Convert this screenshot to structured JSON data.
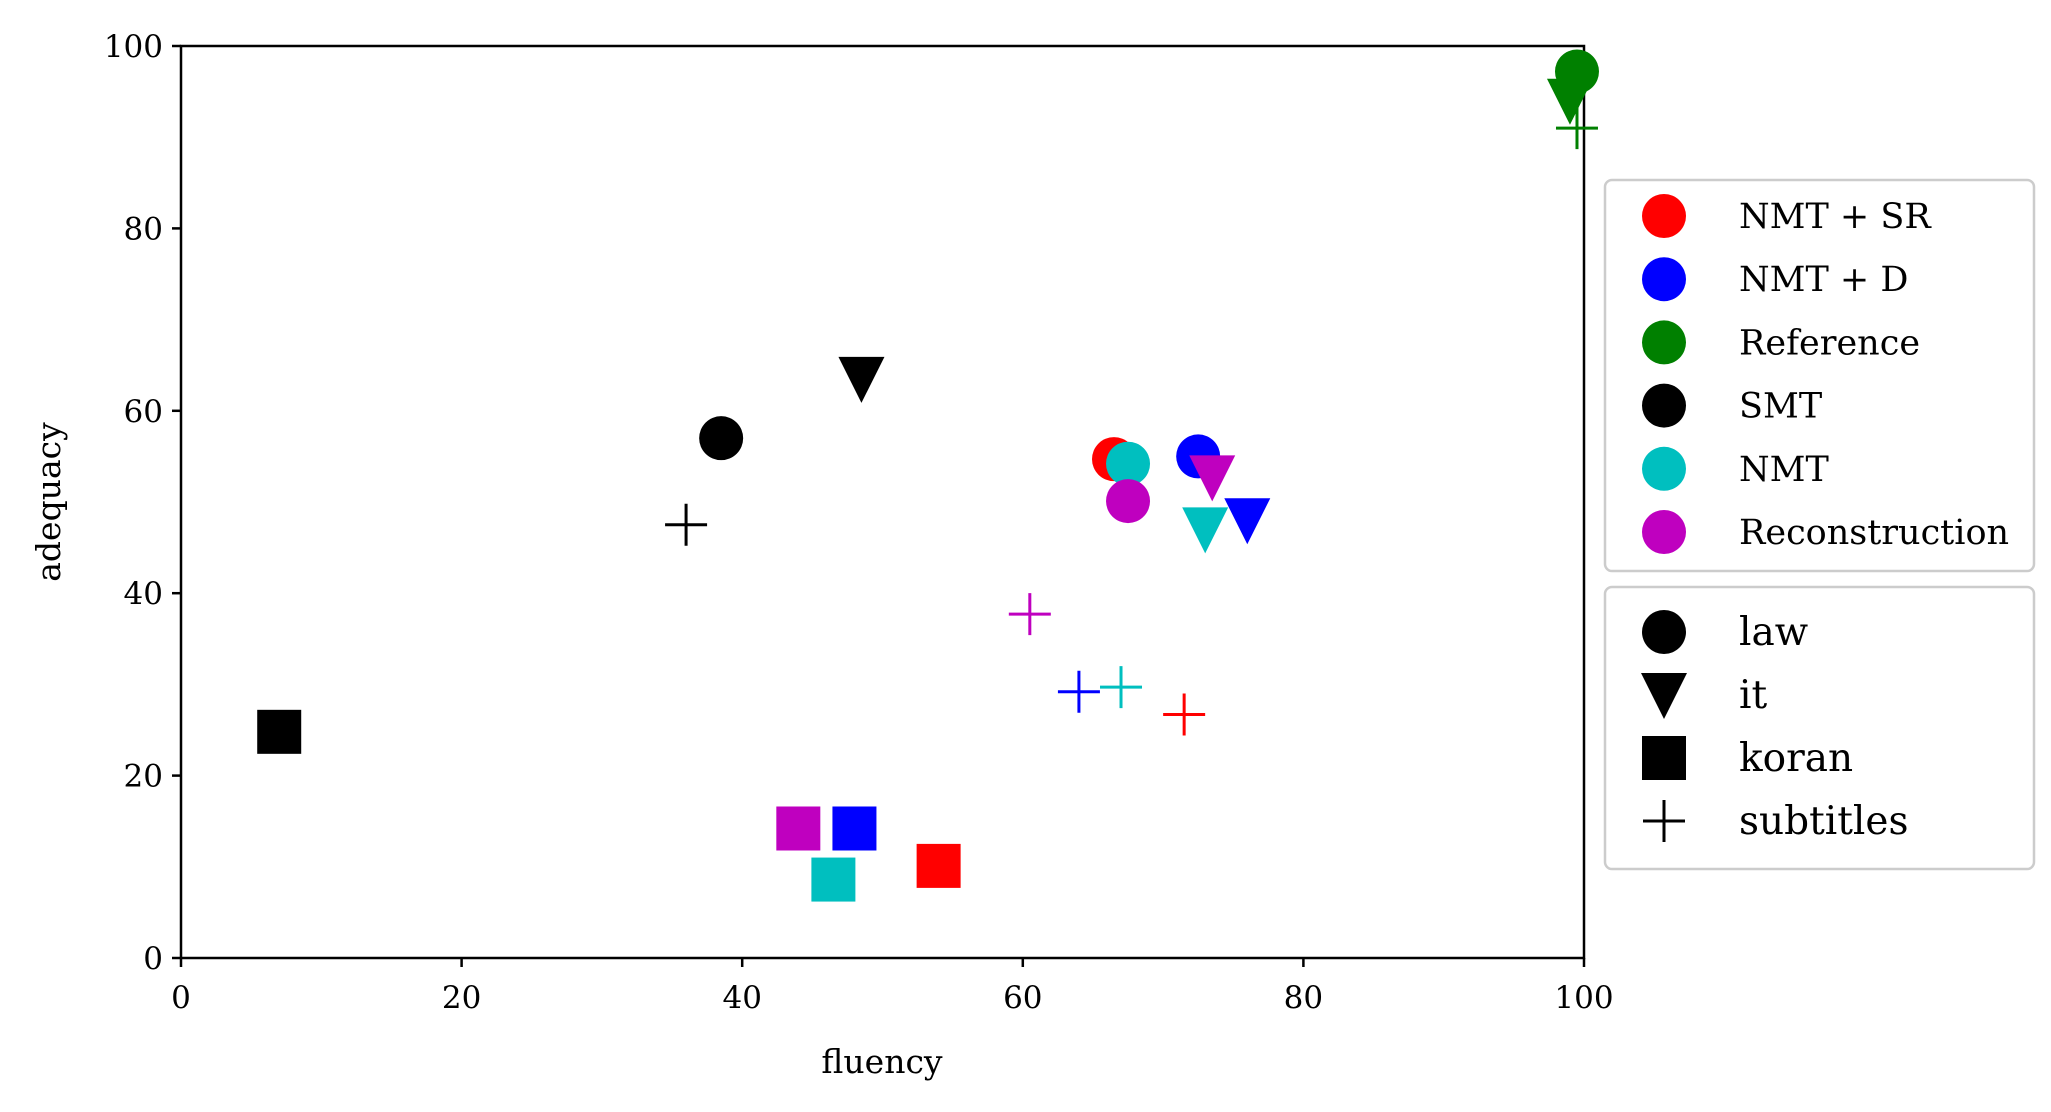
{
  "chart_data": {
    "type": "scatter",
    "xlabel": "fluency",
    "ylabel": "adequacy",
    "xlim": [
      0,
      100
    ],
    "ylim": [
      0,
      100
    ],
    "xticks": [
      0,
      20,
      40,
      60,
      80,
      100
    ],
    "yticks": [
      0,
      20,
      40,
      60,
      80,
      100
    ],
    "grid": false,
    "legend_placement": "right",
    "systems": [
      {
        "name": "NMT + SR",
        "color": "#ff0000"
      },
      {
        "name": "NMT + D",
        "color": "#0000ff"
      },
      {
        "name": "Reference",
        "color": "#008000"
      },
      {
        "name": "SMT",
        "color": "#000000"
      },
      {
        "name": "NMT",
        "color": "#00bfbf"
      },
      {
        "name": "Reconstruction",
        "color": "#bf00bf"
      }
    ],
    "domains": [
      {
        "name": "law",
        "marker": "circle"
      },
      {
        "name": "it",
        "marker": "triangle-down"
      },
      {
        "name": "koran",
        "marker": "square"
      },
      {
        "name": "subtitles",
        "marker": "plus"
      }
    ],
    "points": [
      {
        "system": "SMT",
        "domain": "law",
        "x": 38.5,
        "y": 57.0
      },
      {
        "system": "SMT",
        "domain": "it",
        "x": 48.5,
        "y": 63.5
      },
      {
        "system": "SMT",
        "domain": "koran",
        "x": 7.0,
        "y": 24.8
      },
      {
        "system": "SMT",
        "domain": "subtitles",
        "x": 36.0,
        "y": 47.5
      },
      {
        "system": "NMT + SR",
        "domain": "law",
        "x": 66.5,
        "y": 54.7
      },
      {
        "system": "NMT + SR",
        "domain": "koran",
        "x": 54.0,
        "y": 10.1
      },
      {
        "system": "NMT + SR",
        "domain": "subtitles",
        "x": 71.5,
        "y": 26.7
      },
      {
        "system": "NMT + D",
        "domain": "law",
        "x": 72.5,
        "y": 55.0
      },
      {
        "system": "NMT + D",
        "domain": "it",
        "x": 76.0,
        "y": 48.0
      },
      {
        "system": "NMT + D",
        "domain": "koran",
        "x": 48.0,
        "y": 14.2
      },
      {
        "system": "NMT + D",
        "domain": "subtitles",
        "x": 64.0,
        "y": 29.2
      },
      {
        "system": "Reference",
        "domain": "law",
        "x": 99.5,
        "y": 97.2
      },
      {
        "system": "Reference",
        "domain": "it",
        "x": 99.0,
        "y": 94.0
      },
      {
        "system": "Reference",
        "domain": "subtitles",
        "x": 99.5,
        "y": 91.0
      },
      {
        "system": "NMT",
        "domain": "law",
        "x": 67.5,
        "y": 54.2
      },
      {
        "system": "NMT",
        "domain": "it",
        "x": 73.0,
        "y": 47.0
      },
      {
        "system": "NMT",
        "domain": "koran",
        "x": 46.5,
        "y": 8.6
      },
      {
        "system": "NMT",
        "domain": "subtitles",
        "x": 67.0,
        "y": 29.7
      },
      {
        "system": "Reconstruction",
        "domain": "law",
        "x": 67.5,
        "y": 50.1
      },
      {
        "system": "Reconstruction",
        "domain": "it",
        "x": 73.5,
        "y": 52.7
      },
      {
        "system": "Reconstruction",
        "domain": "koran",
        "x": 44.0,
        "y": 14.2
      },
      {
        "system": "Reconstruction",
        "domain": "subtitles",
        "x": 60.5,
        "y": 37.7
      }
    ]
  }
}
